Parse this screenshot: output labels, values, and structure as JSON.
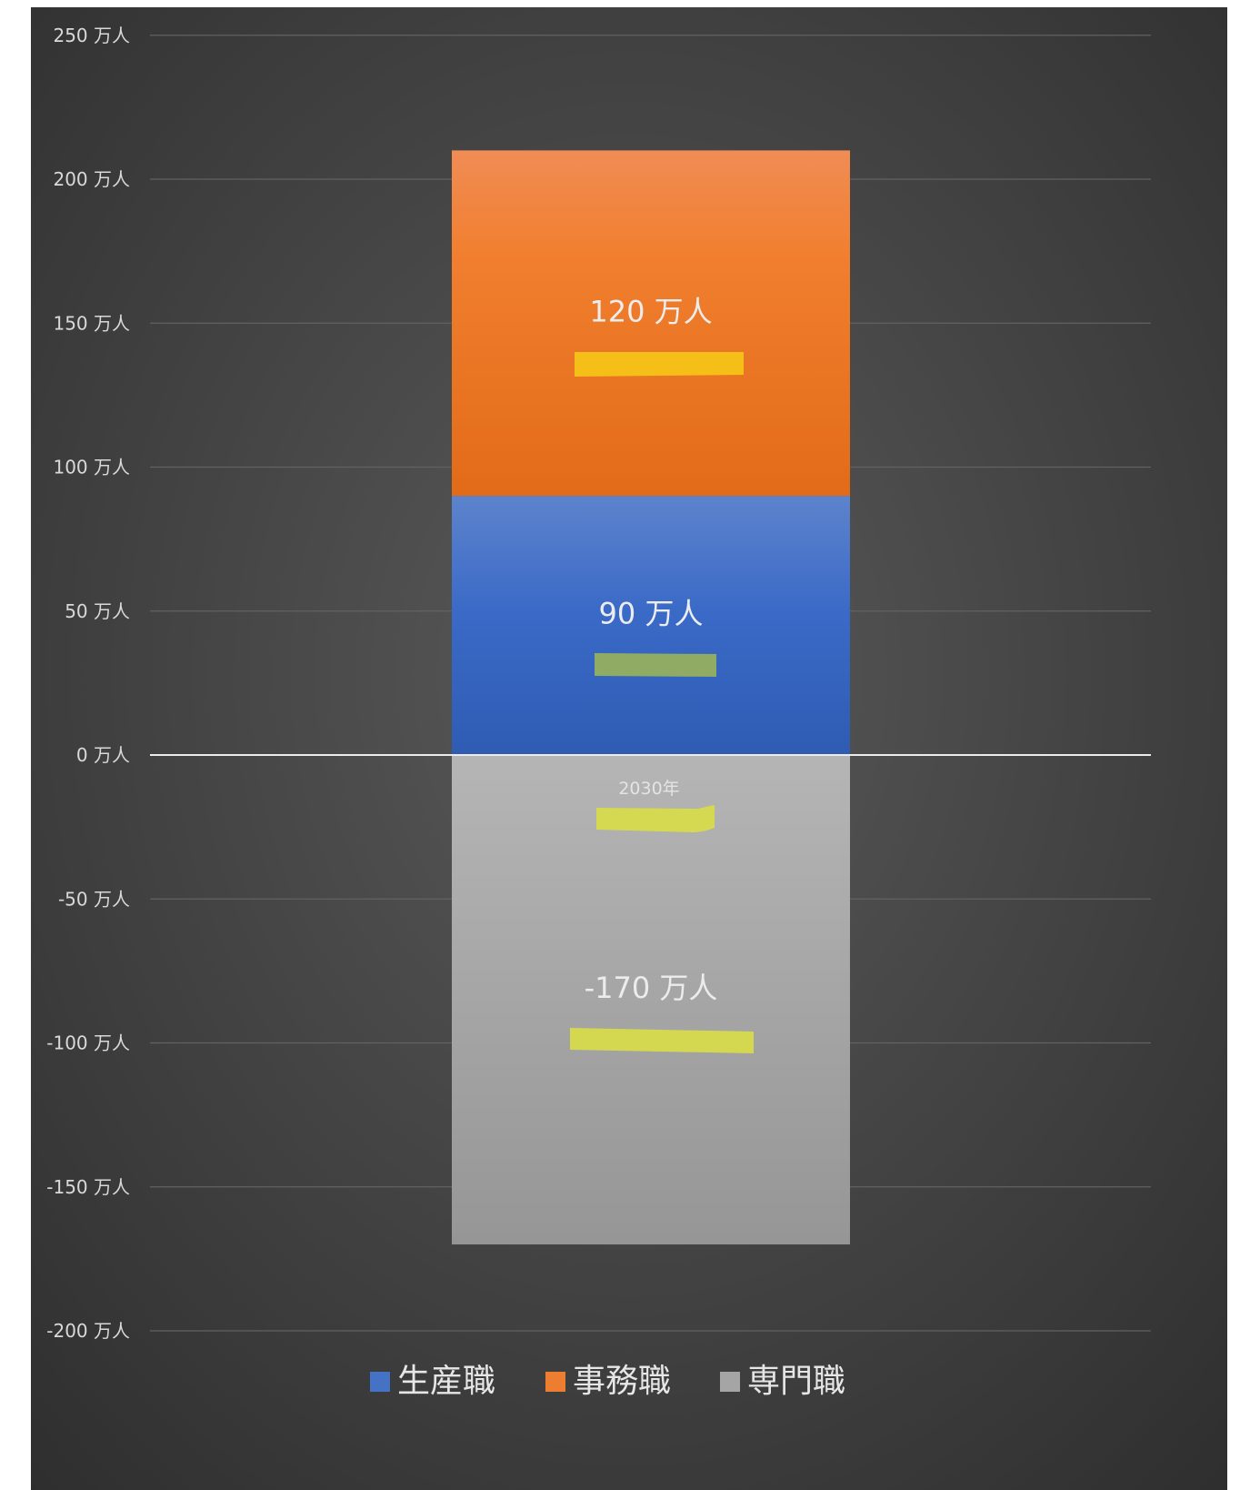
{
  "chart_data": {
    "type": "bar",
    "stacked": true,
    "categories": [
      "2030年"
    ],
    "unit_suffix": " 万人",
    "ylim": [
      -200,
      250
    ],
    "yticks": [
      250,
      200,
      150,
      100,
      50,
      0,
      -50,
      -100,
      -150,
      -200
    ],
    "grid": true,
    "legend_position": "bottom",
    "series": [
      {
        "name": "生産職",
        "values": [
          90
        ],
        "color": "#4472c4",
        "label": "90 万人"
      },
      {
        "name": "事務職",
        "values": [
          120
        ],
        "color": "#ed7d31",
        "label": "120 万人"
      },
      {
        "name": "専門職",
        "values": [
          -170
        ],
        "color": "#a5a5a5",
        "label": "-170 万人"
      }
    ],
    "highlights": {
      "yellow": "#f5c518",
      "lime": "#d8dc4a",
      "olive": "#98b25c"
    }
  }
}
